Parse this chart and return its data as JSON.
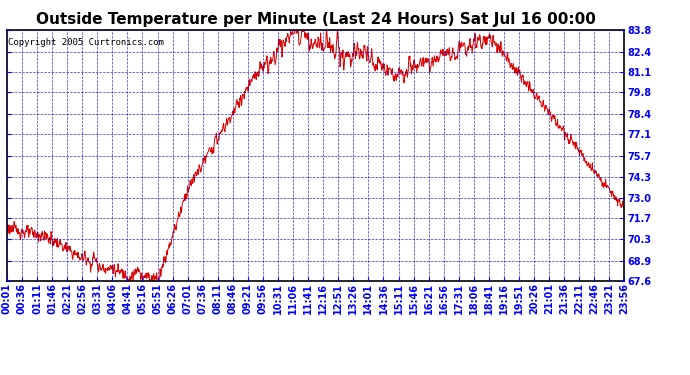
{
  "title": "Outside Temperature per Minute (Last 24 Hours) Sat Jul 16 00:00",
  "copyright": "Copyright 2005 Curtronics.com",
  "y_min": 67.6,
  "y_max": 83.8,
  "y_ticks": [
    67.6,
    68.9,
    70.3,
    71.7,
    73.0,
    74.3,
    75.7,
    77.1,
    78.4,
    79.8,
    81.1,
    82.4,
    83.8
  ],
  "x_tick_labels": [
    "00:01",
    "00:36",
    "01:11",
    "01:46",
    "02:21",
    "02:56",
    "03:31",
    "04:06",
    "04:41",
    "05:16",
    "05:51",
    "06:26",
    "07:01",
    "07:36",
    "08:11",
    "08:46",
    "09:21",
    "09:56",
    "10:31",
    "11:06",
    "11:41",
    "12:16",
    "12:51",
    "13:26",
    "14:01",
    "14:36",
    "15:11",
    "15:46",
    "16:21",
    "16:56",
    "17:31",
    "18:06",
    "18:41",
    "19:16",
    "19:51",
    "20:26",
    "21:01",
    "21:36",
    "22:11",
    "22:46",
    "23:21",
    "23:56"
  ],
  "background_color": "#ffffff",
  "grid_color": "#0000cc",
  "line_color": "#dd0000",
  "title_fontsize": 11,
  "copyright_fontsize": 6.5,
  "tick_label_fontsize": 7
}
